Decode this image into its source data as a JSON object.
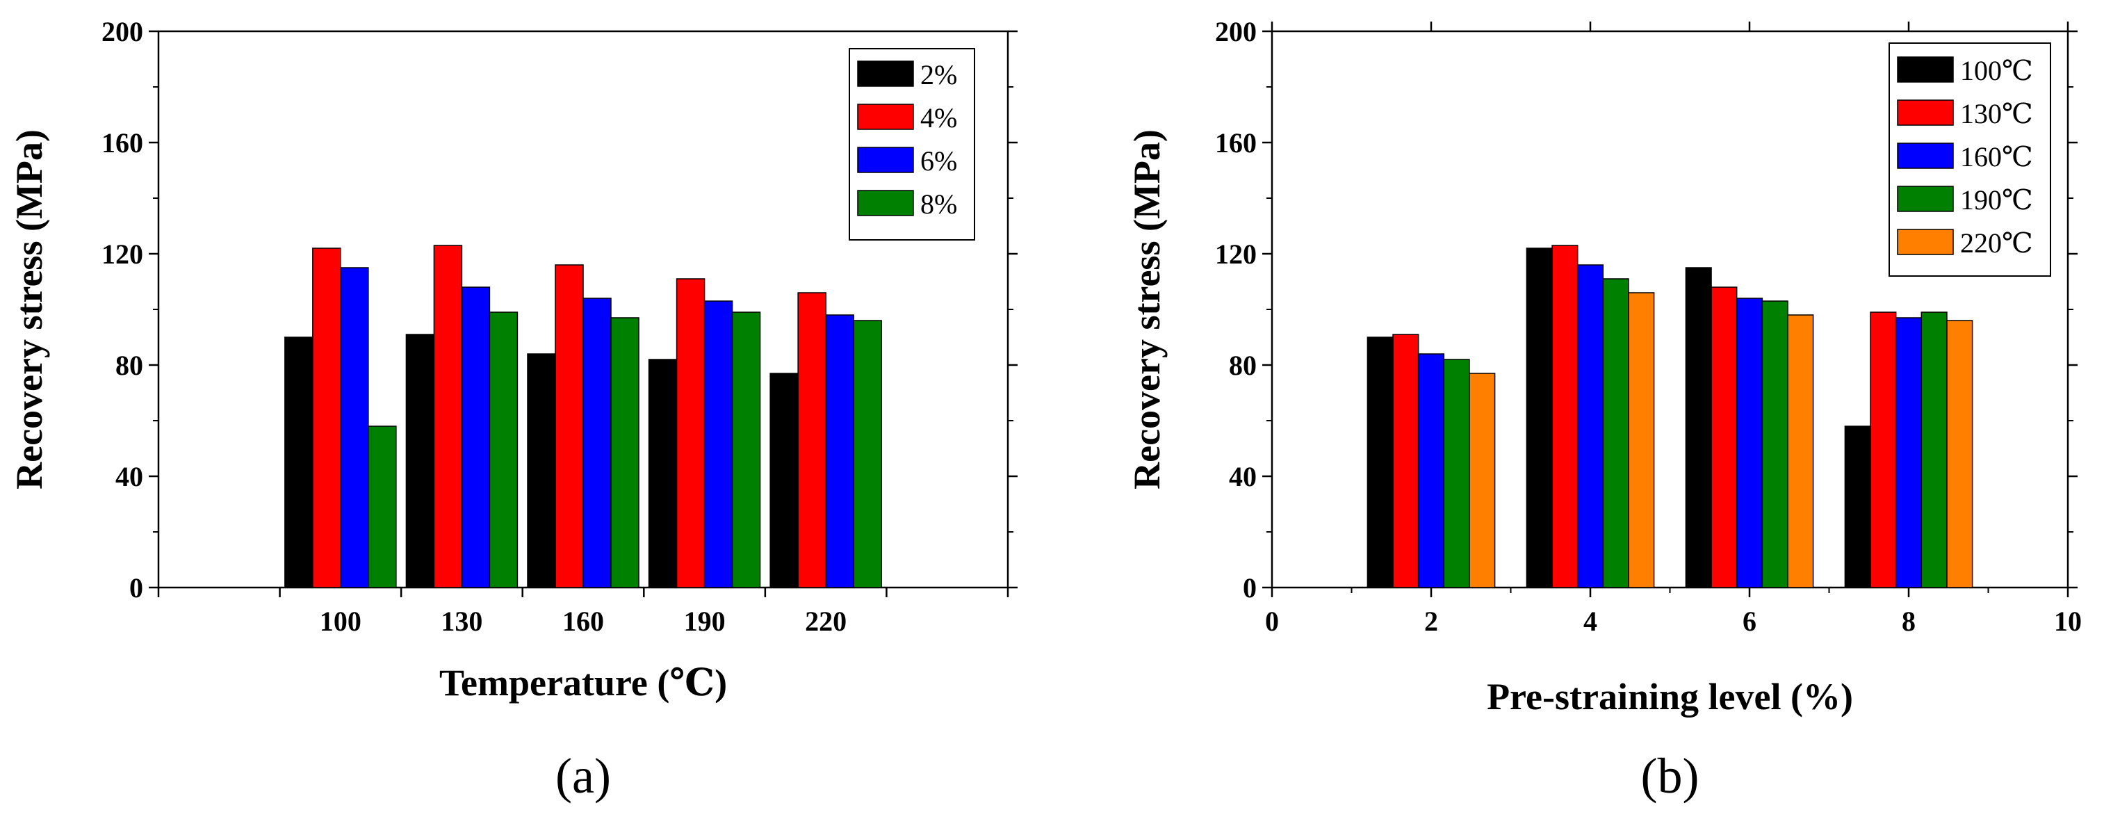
{
  "chart_data": [
    {
      "type": "bar",
      "title": "",
      "panel_label": "(a)",
      "xlabel": "Temperature (℃)",
      "ylabel": "Recovery stress (MPa)",
      "ylim": [
        0,
        200
      ],
      "yticks": [
        "0",
        "40",
        "80",
        "120",
        "160",
        "200"
      ],
      "categories": [
        "100",
        "130",
        "160",
        "190",
        "220"
      ],
      "legend_position": "top-right",
      "grid": false,
      "series": [
        {
          "name": "2%",
          "color": "#000000",
          "values": [
            90,
            91,
            84,
            82,
            77
          ]
        },
        {
          "name": "4%",
          "color": "#ff0000",
          "values": [
            122,
            123,
            116,
            111,
            106
          ]
        },
        {
          "name": "6%",
          "color": "#0000ff",
          "values": [
            115,
            108,
            104,
            103,
            98
          ]
        },
        {
          "name": "8%",
          "color": "#008000",
          "values": [
            58,
            99,
            97,
            99,
            96
          ]
        }
      ]
    },
    {
      "type": "bar",
      "title": "",
      "panel_label": "(b)",
      "xlabel": "Pre-straining level (%)",
      "ylabel": "Recovery stress (MPa)",
      "ylim": [
        0,
        200
      ],
      "xlim": [
        0,
        10
      ],
      "yticks": [
        "0",
        "40",
        "80",
        "120",
        "160",
        "200"
      ],
      "xticks": [
        "0",
        "2",
        "4",
        "6",
        "8",
        "10"
      ],
      "x": [
        2,
        4,
        6,
        8
      ],
      "legend_position": "top-right",
      "grid": false,
      "series": [
        {
          "name": "100℃",
          "color": "#000000",
          "values": [
            90,
            122,
            115,
            58
          ]
        },
        {
          "name": "130℃",
          "color": "#ff0000",
          "values": [
            91,
            123,
            108,
            99
          ]
        },
        {
          "name": "160℃",
          "color": "#0000ff",
          "values": [
            84,
            116,
            104,
            97
          ]
        },
        {
          "name": "190℃",
          "color": "#008000",
          "values": [
            82,
            111,
            103,
            99
          ]
        },
        {
          "name": "220℃",
          "color": "#ff8000",
          "values": [
            77,
            106,
            98,
            96
          ]
        }
      ]
    }
  ]
}
